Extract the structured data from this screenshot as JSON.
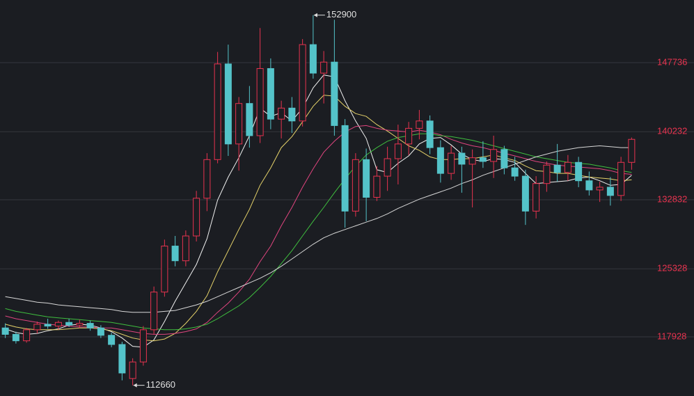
{
  "chart_data": {
    "type": "candlestick",
    "ylim": [
      111500,
      154550
    ],
    "yticks": [
      117928,
      125328,
      132832,
      140232,
      147736
    ],
    "grid": true,
    "up_color": "#e8334f",
    "down_color": "#54c3c9",
    "tick_color": "#e8334f",
    "open": [
      118900,
      118200,
      117500,
      118700,
      119300,
      119100,
      119500,
      119200,
      119400,
      118900,
      118100,
      117100,
      113400,
      115200,
      118700,
      122800,
      127800,
      126200,
      128900,
      133000,
      137200,
      147600,
      138900,
      143300,
      139800,
      147100,
      141600,
      142800,
      141400,
      149700,
      146600,
      147800,
      140900,
      131600,
      137200,
      133100,
      135400,
      137300,
      138900,
      140600,
      141400,
      138500,
      135700,
      137900,
      136700,
      137400,
      137000,
      138300,
      136300,
      135400,
      131600,
      134600,
      136600,
      135800,
      136900,
      134900,
      133900,
      134200,
      133300,
      136900
    ],
    "high": [
      119400,
      118500,
      118900,
      119600,
      119900,
      119700,
      119900,
      119800,
      119700,
      119200,
      118400,
      117400,
      115600,
      119100,
      123400,
      128500,
      128900,
      129500,
      133800,
      137900,
      148900,
      149700,
      144000,
      145200,
      151500,
      148200,
      143600,
      144000,
      150300,
      152900,
      149000,
      152400,
      141600,
      137900,
      138400,
      136500,
      138600,
      141000,
      141300,
      142600,
      142000,
      139300,
      138700,
      138600,
      138300,
      139200,
      139800,
      138700,
      137500,
      136100,
      135400,
      137000,
      138900,
      137700,
      137500,
      135900,
      134800,
      135300,
      137500,
      139600
    ],
    "low": [
      117800,
      117200,
      117300,
      118300,
      118800,
      118700,
      119000,
      118900,
      118600,
      117800,
      116800,
      113200,
      112660,
      114800,
      118200,
      122300,
      125600,
      125600,
      128300,
      131600,
      136800,
      137600,
      136000,
      138500,
      139000,
      140500,
      139500,
      140100,
      140800,
      146000,
      143300,
      139800,
      129800,
      131000,
      130500,
      132700,
      133800,
      134500,
      137700,
      139400,
      137800,
      134700,
      135000,
      133600,
      132000,
      136300,
      135200,
      135600,
      134900,
      130100,
      130800,
      133700,
      134800,
      134900,
      134200,
      133300,
      132600,
      132200,
      132700,
      136100
    ],
    "close": [
      118200,
      117500,
      118700,
      119300,
      119100,
      119500,
      119200,
      119400,
      118900,
      118100,
      117100,
      114000,
      115200,
      118700,
      122800,
      127800,
      126200,
      128900,
      133000,
      137200,
      147600,
      138900,
      143300,
      139800,
      147100,
      141600,
      142800,
      141400,
      149700,
      146600,
      147800,
      140900,
      131600,
      137200,
      133100,
      135400,
      137300,
      138900,
      140600,
      141400,
      138500,
      135700,
      137900,
      136700,
      137400,
      137000,
      138300,
      136300,
      135400,
      131600,
      134600,
      136600,
      135800,
      136900,
      134900,
      133900,
      134200,
      133300,
      136900,
      139400
    ],
    "lines": [
      {
        "color": "#f2f2f2",
        "values": [
          118800,
          118400,
          118200,
          118300,
          118600,
          118800,
          119200,
          119300,
          119200,
          118900,
          118500,
          117800,
          116900,
          116800,
          117600,
          119600,
          121800,
          123800,
          125800,
          128600,
          132800,
          135300,
          137400,
          139800,
          142800,
          141900,
          142300,
          141400,
          142800,
          145000,
          146400,
          146200,
          143600,
          141400,
          139500,
          136100,
          135800,
          136800,
          137600,
          138900,
          139500,
          139600,
          138800,
          137800,
          137200,
          137000,
          137300,
          137200,
          136900,
          135700,
          134600,
          134700,
          134800,
          134900,
          135200,
          135300,
          134900,
          134400,
          134500,
          135500
        ]
      },
      {
        "color": "#e6d36a",
        "values": [
          119300,
          119000,
          118800,
          118700,
          118700,
          118700,
          118800,
          118900,
          118900,
          118800,
          118600,
          118200,
          117800,
          117600,
          117500,
          117700,
          118300,
          119400,
          120700,
          122400,
          125000,
          127300,
          129600,
          131800,
          134400,
          136300,
          138500,
          139700,
          141300,
          143000,
          144200,
          144100,
          143000,
          142200,
          141900,
          141000,
          140300,
          139500,
          138700,
          138200,
          137500,
          137200,
          137200,
          137300,
          137300,
          137500,
          137700,
          137400,
          137100,
          136500,
          136000,
          135900,
          135700,
          135700,
          135500,
          135300,
          135200,
          135100,
          134900,
          135000
        ]
      },
      {
        "color": "#e0457f",
        "values": [
          120200,
          119900,
          119700,
          119500,
          119300,
          119200,
          119100,
          119000,
          119000,
          118900,
          118900,
          118700,
          118500,
          118300,
          118200,
          118200,
          118300,
          118500,
          118800,
          119500,
          120600,
          121600,
          122800,
          124200,
          126100,
          127800,
          130000,
          132000,
          134200,
          136200,
          138000,
          139200,
          140200,
          140800,
          140900,
          140600,
          140400,
          140300,
          140200,
          140400,
          140200,
          139900,
          139400,
          139000,
          138700,
          138500,
          138200,
          137900,
          137600,
          137300,
          137000,
          136800,
          136600,
          136500,
          136400,
          136300,
          136200,
          136000,
          135700,
          135600
        ]
      },
      {
        "color": "#3fbf3f",
        "values": [
          121000,
          120700,
          120500,
          120300,
          120100,
          120000,
          119900,
          119800,
          119700,
          119600,
          119500,
          119300,
          119100,
          118900,
          118800,
          118700,
          118700,
          118800,
          119000,
          119300,
          119900,
          120600,
          121300,
          122200,
          123300,
          124500,
          125900,
          127300,
          128900,
          130500,
          132000,
          133600,
          135100,
          136500,
          137700,
          138500,
          139200,
          139600,
          139800,
          140000,
          140000,
          139800,
          139700,
          139500,
          139300,
          139000,
          138700,
          138400,
          138100,
          137800,
          137500,
          137300,
          137100,
          136900,
          136800,
          136700,
          136500,
          136300,
          136000,
          135800
        ]
      },
      {
        "color": "#d8d8d8",
        "values": [
          122300,
          122100,
          121900,
          121700,
          121600,
          121400,
          121300,
          121200,
          121100,
          121000,
          120900,
          120700,
          120600,
          120600,
          120600,
          120700,
          120800,
          121100,
          121400,
          121800,
          122300,
          122800,
          123300,
          123800,
          124300,
          124900,
          125600,
          126400,
          127200,
          128000,
          128700,
          129200,
          129600,
          130000,
          130400,
          130800,
          131300,
          131900,
          132400,
          132900,
          133300,
          133700,
          134100,
          134600,
          135000,
          135500,
          135900,
          136300,
          136700,
          137100,
          137500,
          137800,
          138100,
          138300,
          138500,
          138600,
          138700,
          138600,
          138500,
          138500
        ]
      }
    ],
    "annotations": [
      152900,
      112660
    ]
  }
}
